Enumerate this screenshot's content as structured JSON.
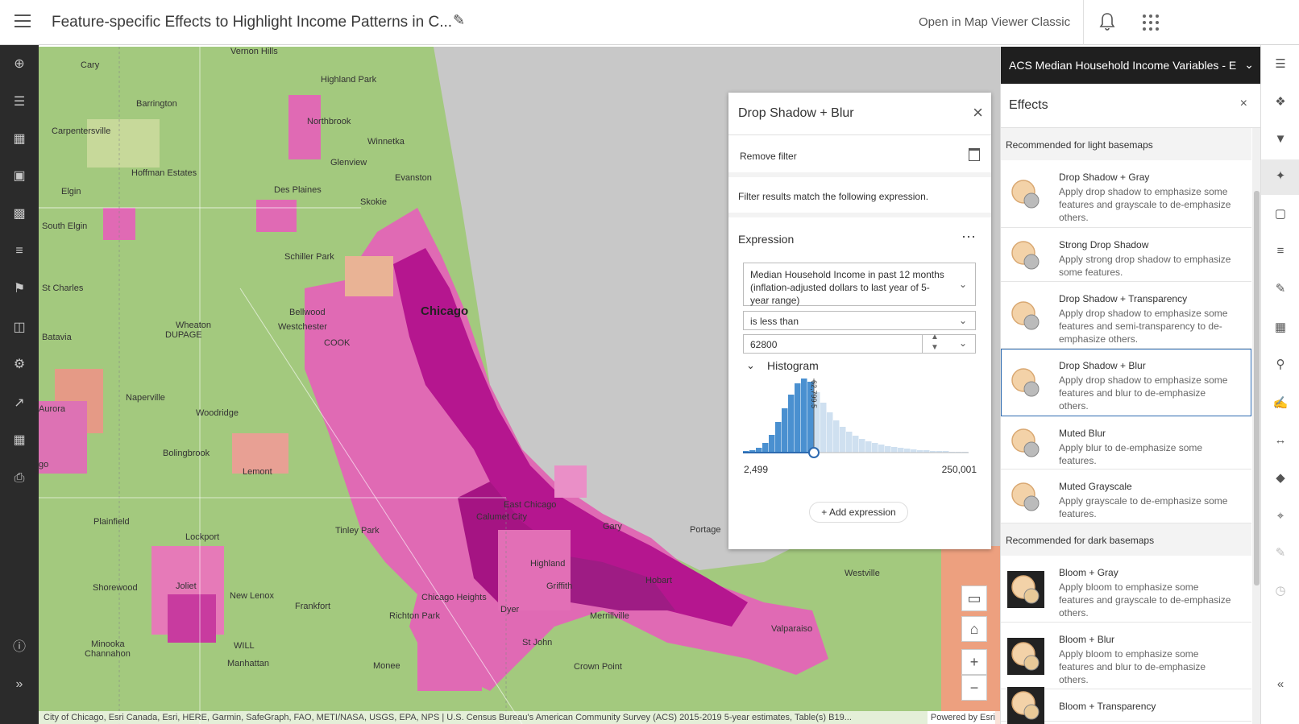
{
  "header": {
    "title": "Feature-specific Effects to Highlight Income Patterns in C...",
    "open_classic": "Open in Map Viewer Classic"
  },
  "map": {
    "labels": [
      {
        "text": "Vernon Hills",
        "cls": ""
      },
      {
        "text": "Cary",
        "cls": ""
      },
      {
        "text": "Highland Park",
        "cls": ""
      },
      {
        "text": "Barrington",
        "cls": ""
      },
      {
        "text": "Northbrook",
        "cls": ""
      },
      {
        "text": "Carpentersville",
        "cls": ""
      },
      {
        "text": "Winnetka",
        "cls": ""
      },
      {
        "text": "Hoffman Estates",
        "cls": ""
      },
      {
        "text": "Glenview",
        "cls": ""
      },
      {
        "text": "Elgin",
        "cls": ""
      },
      {
        "text": "Des Plaines",
        "cls": ""
      },
      {
        "text": "Evanston",
        "cls": ""
      },
      {
        "text": "Skokie",
        "cls": ""
      },
      {
        "text": "South Elgin",
        "cls": ""
      },
      {
        "text": "Schiller Park",
        "cls": ""
      },
      {
        "text": "St Charles",
        "cls": ""
      },
      {
        "text": "Chicago",
        "cls": "big"
      },
      {
        "text": "Bellwood",
        "cls": ""
      },
      {
        "text": "Westchester",
        "cls": ""
      },
      {
        "text": "Batavia",
        "cls": ""
      },
      {
        "text": "Wheaton",
        "cls": ""
      },
      {
        "text": "DUPAGE",
        "cls": ""
      },
      {
        "text": "COOK",
        "cls": ""
      },
      {
        "text": "Aurora",
        "cls": ""
      },
      {
        "text": "Naperville",
        "cls": ""
      },
      {
        "text": "Woodridge",
        "cls": ""
      },
      {
        "text": "Bolingbrook",
        "cls": ""
      },
      {
        "text": "Lemont",
        "cls": ""
      },
      {
        "text": "go",
        "cls": ""
      },
      {
        "text": "East Chicago",
        "cls": ""
      },
      {
        "text": "Calumet City",
        "cls": ""
      },
      {
        "text": "Gary",
        "cls": ""
      },
      {
        "text": "Portage",
        "cls": ""
      },
      {
        "text": "Plainfield",
        "cls": ""
      },
      {
        "text": "Tinley Park",
        "cls": ""
      },
      {
        "text": "Lockport",
        "cls": ""
      },
      {
        "text": "Highland",
        "cls": ""
      },
      {
        "text": "Griffith",
        "cls": ""
      },
      {
        "text": "Hobart",
        "cls": ""
      },
      {
        "text": "Westville",
        "cls": ""
      },
      {
        "text": "Shorewood",
        "cls": ""
      },
      {
        "text": "Joliet",
        "cls": ""
      },
      {
        "text": "New Lenox",
        "cls": ""
      },
      {
        "text": "Chicago Heights",
        "cls": ""
      },
      {
        "text": "Frankfort",
        "cls": ""
      },
      {
        "text": "Richton Park",
        "cls": ""
      },
      {
        "text": "Dyer",
        "cls": ""
      },
      {
        "text": "Merrillville",
        "cls": ""
      },
      {
        "text": "Valparaiso",
        "cls": ""
      },
      {
        "text": "Minooka",
        "cls": ""
      },
      {
        "text": "Channahon",
        "cls": ""
      },
      {
        "text": "WILL",
        "cls": ""
      },
      {
        "text": "St John",
        "cls": ""
      },
      {
        "text": "Manhattan",
        "cls": ""
      },
      {
        "text": "Monee",
        "cls": ""
      },
      {
        "text": "Crown Point",
        "cls": ""
      }
    ],
    "attribution": "City of Chicago, Esri Canada, Esri, HERE, Garmin, SafeGraph, FAO, METI/NASA, USGS, EPA, NPS | U.S. Census Bureau's American Community Survey (ACS) 2015-2019 5-year estimates, Table(s) B19...",
    "powered": "Powered by Esri"
  },
  "filter": {
    "title": "Drop Shadow + Blur",
    "remove_filter": "Remove filter",
    "match_text": "Filter results match the following expression.",
    "expression_title": "Expression",
    "field": "Median Household Income in past 12 months (inflation-adjusted dollars to last year of 5-year range)",
    "operator": "is less than",
    "value": "62800",
    "histogram_label": "Histogram",
    "hist_min": "2,499",
    "hist_max": "250,001",
    "hist_marker": "62,799.5",
    "add_expression": "Add expression",
    "histogram_bins": [
      2,
      3,
      6,
      12,
      22,
      38,
      55,
      72,
      86,
      92,
      88,
      75,
      62,
      50,
      40,
      32,
      26,
      21,
      17,
      14,
      12,
      10,
      8,
      7,
      6,
      5,
      4,
      3,
      3,
      2,
      2,
      2,
      1,
      1,
      1
    ],
    "histogram_cutoff_bin": 10
  },
  "panel": {
    "layer_title": "ACS Median Household Income Variables - E",
    "effects_title": "Effects",
    "group_light": "Recommended for light basemaps",
    "group_dark": "Recommended for dark basemaps",
    "effects": [
      {
        "name": "Drop Shadow + Gray",
        "desc": "Apply drop shadow to emphasize some features and grayscale to de-emphasize others."
      },
      {
        "name": "Strong Drop Shadow",
        "desc": "Apply strong drop shadow to emphasize some features."
      },
      {
        "name": "Drop Shadow + Transparency",
        "desc": "Apply drop shadow to emphasize some features and semi-transparency to de-emphasize others."
      },
      {
        "name": "Drop Shadow + Blur",
        "desc": "Apply drop shadow to emphasize some features and blur to de-emphasize others."
      },
      {
        "name": "Muted Blur",
        "desc": "Apply blur to de-emphasize some features."
      },
      {
        "name": "Muted Grayscale",
        "desc": "Apply grayscale to de-emphasize some features."
      },
      {
        "name": "Bloom + Gray",
        "desc": "Apply bloom to emphasize some features and grayscale to de-emphasize others."
      },
      {
        "name": "Bloom + Blur",
        "desc": "Apply bloom to emphasize some features and blur to de-emphasize others."
      },
      {
        "name": "Bloom + Transparency",
        "desc": ""
      }
    ]
  },
  "colors": {
    "accent": "#2d6ab0",
    "hist_fill": "#4a90d0",
    "hist_light": "#cfe0f0",
    "magenta": "#b5168f",
    "pink": "#e06ab4",
    "salmon": "#ea9a7c",
    "green": "#9fc77a"
  }
}
